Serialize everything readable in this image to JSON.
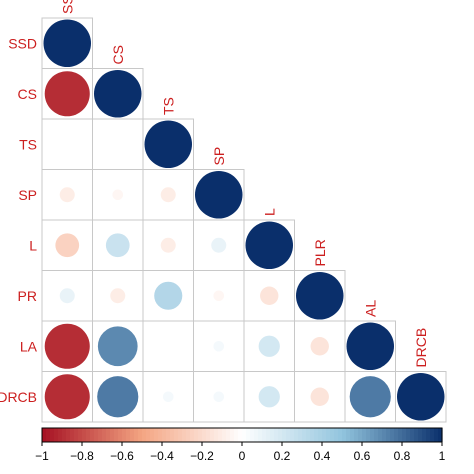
{
  "chart_data": {
    "type": "heatmap",
    "variables": [
      "SSD",
      "CS",
      "TS",
      "SP",
      "L",
      "PLR",
      "AL",
      "DRCB"
    ],
    "row_labels": [
      "SSD",
      "CS",
      "TS",
      "SP",
      "L",
      "PR",
      "LA",
      "DRCB"
    ],
    "column_labels": [
      "SS",
      "CS",
      "TS",
      "SP",
      "L",
      "PLR",
      "AL",
      "DRCB"
    ],
    "lower_triangle": [
      [
        1
      ],
      [
        -0.9,
        1
      ],
      [
        0.0,
        0.0,
        1
      ],
      [
        -0.1,
        -0.05,
        -0.1,
        1
      ],
      [
        -0.25,
        0.25,
        -0.1,
        0.1,
        1
      ],
      [
        0.1,
        -0.1,
        0.35,
        -0.05,
        -0.15,
        1
      ],
      [
        -0.9,
        0.7,
        0.0,
        0.05,
        0.2,
        -0.15,
        1
      ],
      [
        -0.9,
        0.75,
        0.05,
        0.05,
        0.2,
        -0.15,
        0.75,
        1
      ]
    ],
    "colorbar": {
      "range": [
        -1,
        1
      ],
      "ticks": [
        "−1",
        "−0.8",
        "−0.6",
        "−0.4",
        "−0.2",
        "0",
        "0.2",
        "0.4",
        "0.6",
        "0.8",
        "1"
      ]
    },
    "colors": {
      "negative_strong": "#a50f22",
      "negative_mid": "#f4a582",
      "neutral": "#ffffff",
      "positive_mid": "#92c5de",
      "positive_strong": "#0a2f6b",
      "label": "#cc1f1f",
      "grid": "#c8c8c8"
    }
  }
}
